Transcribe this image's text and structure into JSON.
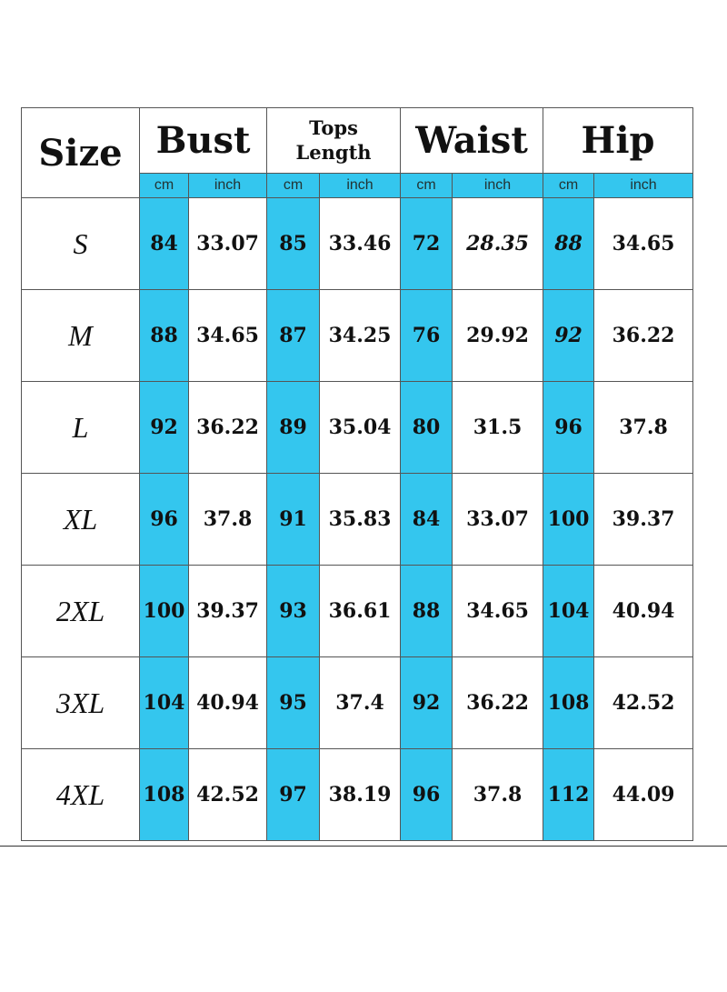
{
  "headers": {
    "size": "Size",
    "bust": "Bust",
    "tops_line1": "Tops",
    "tops_line2": "Length",
    "waist": "Waist",
    "hip": "Hip"
  },
  "units": [
    "cm",
    "inch",
    "cm",
    "inch",
    "cm",
    "inch",
    "cm",
    "inch"
  ],
  "accent_color": "#34c6ee",
  "rows": [
    {
      "size": "S",
      "values": [
        "84",
        "33.07",
        "85",
        "33.46",
        "72",
        "28.35",
        "88",
        "34.65"
      ]
    },
    {
      "size": "M",
      "values": [
        "88",
        "34.65",
        "87",
        "34.25",
        "76",
        "29.92",
        "92",
        "36.22"
      ]
    },
    {
      "size": "L",
      "values": [
        "92",
        "36.22",
        "89",
        "35.04",
        "80",
        "31.5",
        "96",
        "37.8"
      ]
    },
    {
      "size": "XL",
      "values": [
        "96",
        "37.8",
        "91",
        "35.83",
        "84",
        "33.07",
        "100",
        "39.37"
      ]
    },
    {
      "size": "2XL",
      "values": [
        "100",
        "39.37",
        "93",
        "36.61",
        "88",
        "34.65",
        "104",
        "40.94"
      ]
    },
    {
      "size": "3XL",
      "values": [
        "104",
        "40.94",
        "95",
        "37.4",
        "92",
        "36.22",
        "108",
        "42.52"
      ]
    },
    {
      "size": "4XL",
      "values": [
        "108",
        "42.52",
        "97",
        "38.19",
        "96",
        "37.8",
        "112",
        "44.09"
      ]
    }
  ]
}
